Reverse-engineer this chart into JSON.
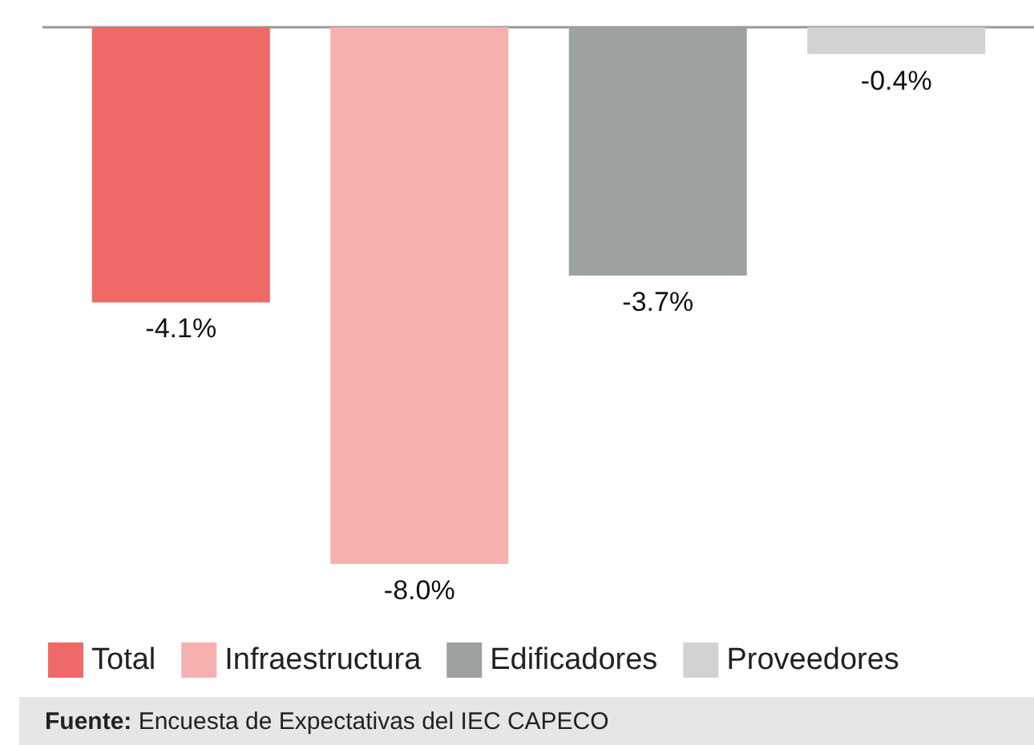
{
  "chart_data": {
    "type": "bar",
    "categories": [
      null
    ],
    "series": [
      {
        "name": "Total",
        "color": "#ef6967",
        "values": [
          -4.1
        ],
        "value_labels": [
          "-4.1%"
        ]
      },
      {
        "name": "Infraestructura",
        "color": "#f6b0b0",
        "values": [
          -8.0
        ],
        "value_labels": [
          "-8.0%"
        ]
      },
      {
        "name": "Edificadores",
        "color": "#9ca1a1",
        "values": [
          -3.7
        ],
        "value_labels": [
          "-3.7%"
        ]
      },
      {
        "name": "Proveedores",
        "color": "#d1d3d2",
        "values": [
          -0.4
        ],
        "value_labels": [
          "-0.4%"
        ]
      }
    ],
    "legend": "bottom",
    "annotations": [
      "Fuente: Encuesta de Expectativas del IEC CAPECO"
    ]
  }
}
